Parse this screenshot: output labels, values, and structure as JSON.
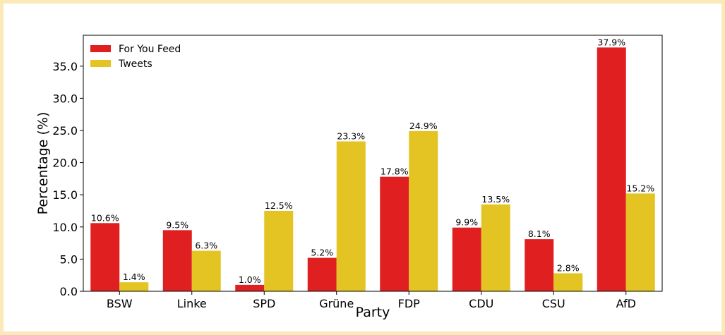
{
  "chart_data": {
    "type": "bar",
    "categories": [
      "BSW",
      "Linke",
      "SPD",
      "Grüne",
      "FDP",
      "CDU",
      "CSU",
      "AfD"
    ],
    "series": [
      {
        "name": "For You Feed",
        "color": "#e02020",
        "values": [
          10.6,
          9.5,
          1.0,
          5.2,
          17.8,
          9.9,
          8.1,
          37.9
        ],
        "labels": [
          "10.6%",
          "9.5%",
          "1.0%",
          "5.2%",
          "17.8%",
          "9.9%",
          "8.1%",
          "37.9%"
        ]
      },
      {
        "name": "Tweets",
        "color": "#e3c423",
        "values": [
          1.4,
          6.3,
          12.5,
          23.3,
          24.9,
          13.5,
          2.8,
          15.2
        ],
        "labels": [
          "1.4%",
          "6.3%",
          "12.5%",
          "23.3%",
          "24.9%",
          "13.5%",
          "2.8%",
          "15.2%"
        ]
      }
    ],
    "xlabel": "Party",
    "ylabel": "Percentage (%)",
    "ylim": [
      0,
      39.8
    ],
    "yticks": [
      "0.0",
      "5.0",
      "10.0",
      "15.0",
      "20.0",
      "25.0",
      "30.0",
      "35.0"
    ],
    "grid": false,
    "legend_position": "top-left"
  }
}
